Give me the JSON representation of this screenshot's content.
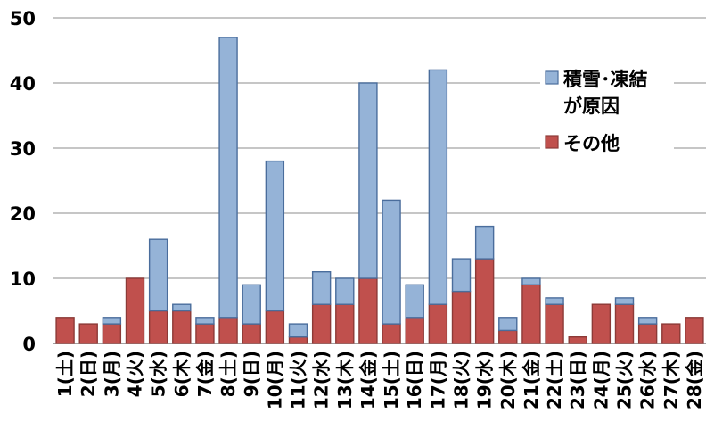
{
  "chart_data": {
    "type": "bar",
    "stacked": true,
    "title": "",
    "xlabel": "",
    "ylabel": "",
    "ylim": [
      0,
      50
    ],
    "yticks": [
      0,
      10,
      20,
      30,
      40,
      50
    ],
    "grid": true,
    "legend_position": "right",
    "categories": [
      "1(土)",
      "2(日)",
      "3(月)",
      "4(火)",
      "5(水)",
      "6(木)",
      "7(金)",
      "8(土)",
      "9(日)",
      "10(月)",
      "11(火)",
      "12(水)",
      "13(木)",
      "14(金)",
      "15(土)",
      "16(日)",
      "17(月)",
      "18(火)",
      "19(水)",
      "20(木)",
      "21(金)",
      "22(土)",
      "23(日)",
      "24(月)",
      "25(火)",
      "26(水)",
      "27(木)",
      "28(金)"
    ],
    "series": [
      {
        "name": "その他",
        "color": "#c0504d",
        "values": [
          4,
          3,
          3,
          10,
          5,
          5,
          3,
          4,
          3,
          5,
          1,
          6,
          6,
          10,
          3,
          4,
          6,
          8,
          13,
          2,
          9,
          6,
          1,
          6,
          6,
          3,
          3,
          4
        ]
      },
      {
        "name": "積雪･凍結が原因",
        "legend_lines": [
          "積雪･凍結",
          "が原因"
        ],
        "color": "#95b3d7",
        "values": [
          0,
          0,
          1,
          0,
          11,
          1,
          1,
          43,
          6,
          23,
          2,
          5,
          4,
          30,
          19,
          5,
          36,
          5,
          5,
          2,
          1,
          1,
          0,
          0,
          1,
          1,
          0,
          0
        ]
      }
    ]
  }
}
